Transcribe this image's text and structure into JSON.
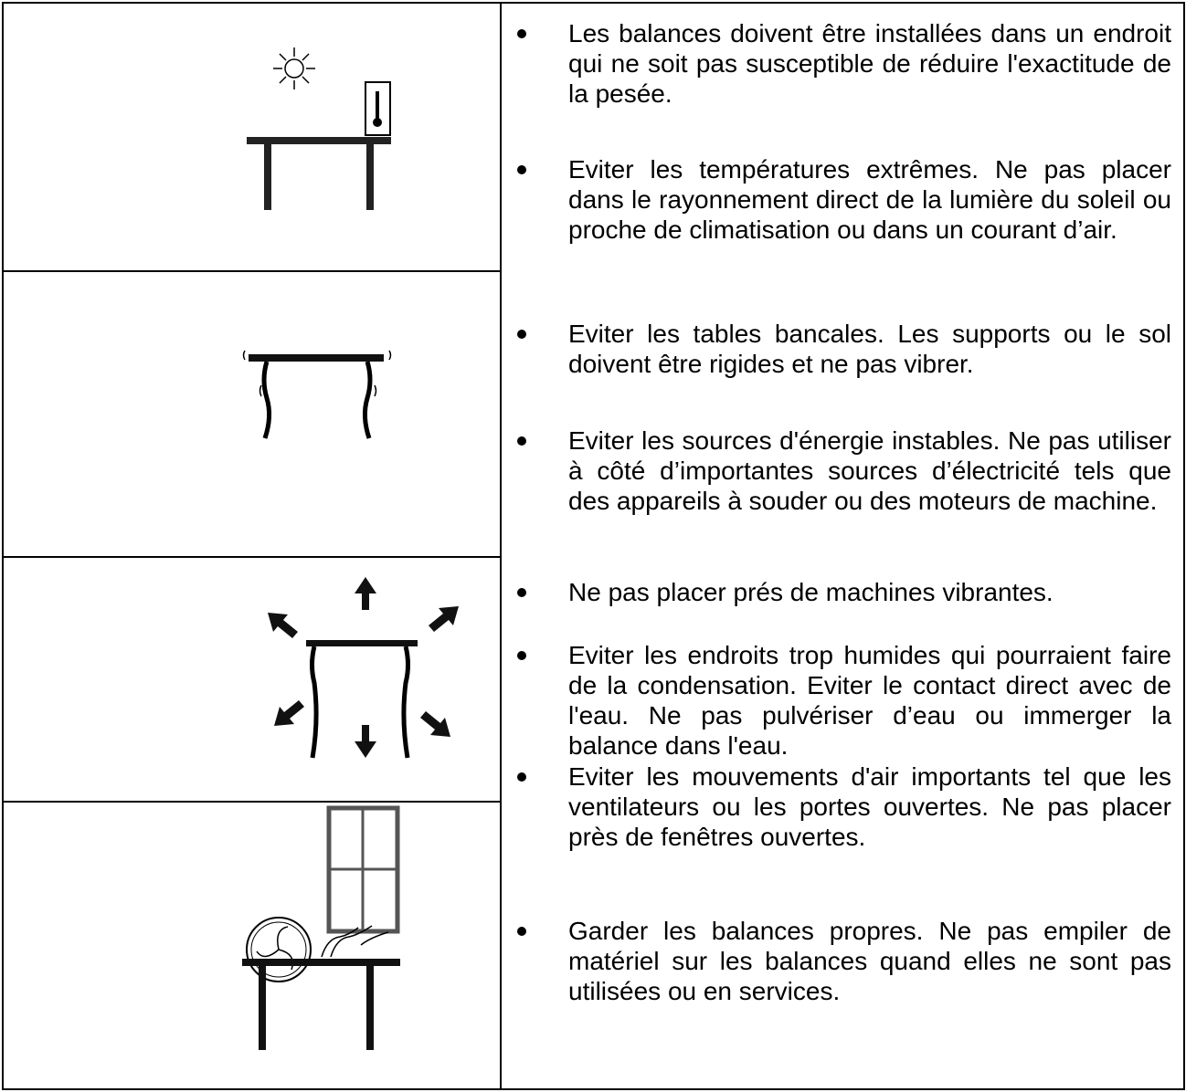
{
  "items": [
    "Les balances doivent être installées dans un endroit qui ne soit pas susceptible de réduire l'exactitude de la pesée.",
    "Eviter les températures extrêmes. Ne pas placer dans le rayonnement direct de la lumière du soleil ou proche de climatisation ou dans un courant d’air.",
    "Eviter les tables bancales. Les supports ou le sol doivent être rigides et ne pas vibrer.",
    "Eviter les sources d'énergie instables. Ne pas utiliser à côté d’importantes sources d’électricité tels que des appareils à souder ou des moteurs de machine.",
    "Ne pas placer prés de machines vibrantes.",
    "Eviter les endroits trop humides qui pourraient faire de la condensation. Eviter le contact direct avec de l'eau. Ne pas pulvériser d’eau ou immerger la balance dans l'eau.",
    "Eviter les mouvements d'air importants tel que les ventilateurs ou les portes ouvertes. Ne pas placer près de fenêtres ouvertes.",
    "Garder les balances propres. Ne pas empiler de matériel sur les balances quand elles ne sont pas utilisées ou en services."
  ]
}
